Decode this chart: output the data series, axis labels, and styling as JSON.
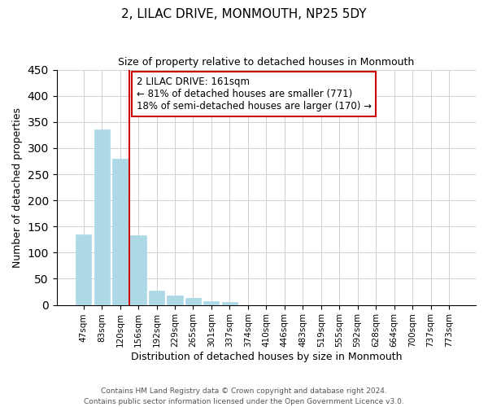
{
  "title": "2, LILAC DRIVE, MONMOUTH, NP25 5DY",
  "subtitle": "Size of property relative to detached houses in Monmouth",
  "xlabel": "Distribution of detached houses by size in Monmouth",
  "ylabel": "Number of detached properties",
  "bar_labels": [
    "47sqm",
    "83sqm",
    "120sqm",
    "156sqm",
    "192sqm",
    "229sqm",
    "265sqm",
    "301sqm",
    "337sqm",
    "374sqm",
    "410sqm",
    "446sqm",
    "483sqm",
    "519sqm",
    "555sqm",
    "592sqm",
    "628sqm",
    "664sqm",
    "700sqm",
    "737sqm",
    "773sqm"
  ],
  "bar_values": [
    135,
    335,
    280,
    133,
    27,
    18,
    13,
    7,
    5,
    0,
    0,
    0,
    0,
    0,
    0,
    0,
    0,
    0,
    0,
    0,
    0
  ],
  "bar_color": "#add8e6",
  "vline_color": "#cc0000",
  "annotation_text": "2 LILAC DRIVE: 161sqm\n← 81% of detached houses are smaller (771)\n18% of semi-detached houses are larger (170) →",
  "annotation_box_color": "#ffffff",
  "annotation_border_color": "#cc0000",
  "ylim": [
    0,
    450
  ],
  "yticks": [
    0,
    50,
    100,
    150,
    200,
    250,
    300,
    350,
    400,
    450
  ],
  "footer_line1": "Contains HM Land Registry data © Crown copyright and database right 2024.",
  "footer_line2": "Contains public sector information licensed under the Open Government Licence v3.0.",
  "background_color": "#ffffff",
  "grid_color": "#d0d0d0"
}
